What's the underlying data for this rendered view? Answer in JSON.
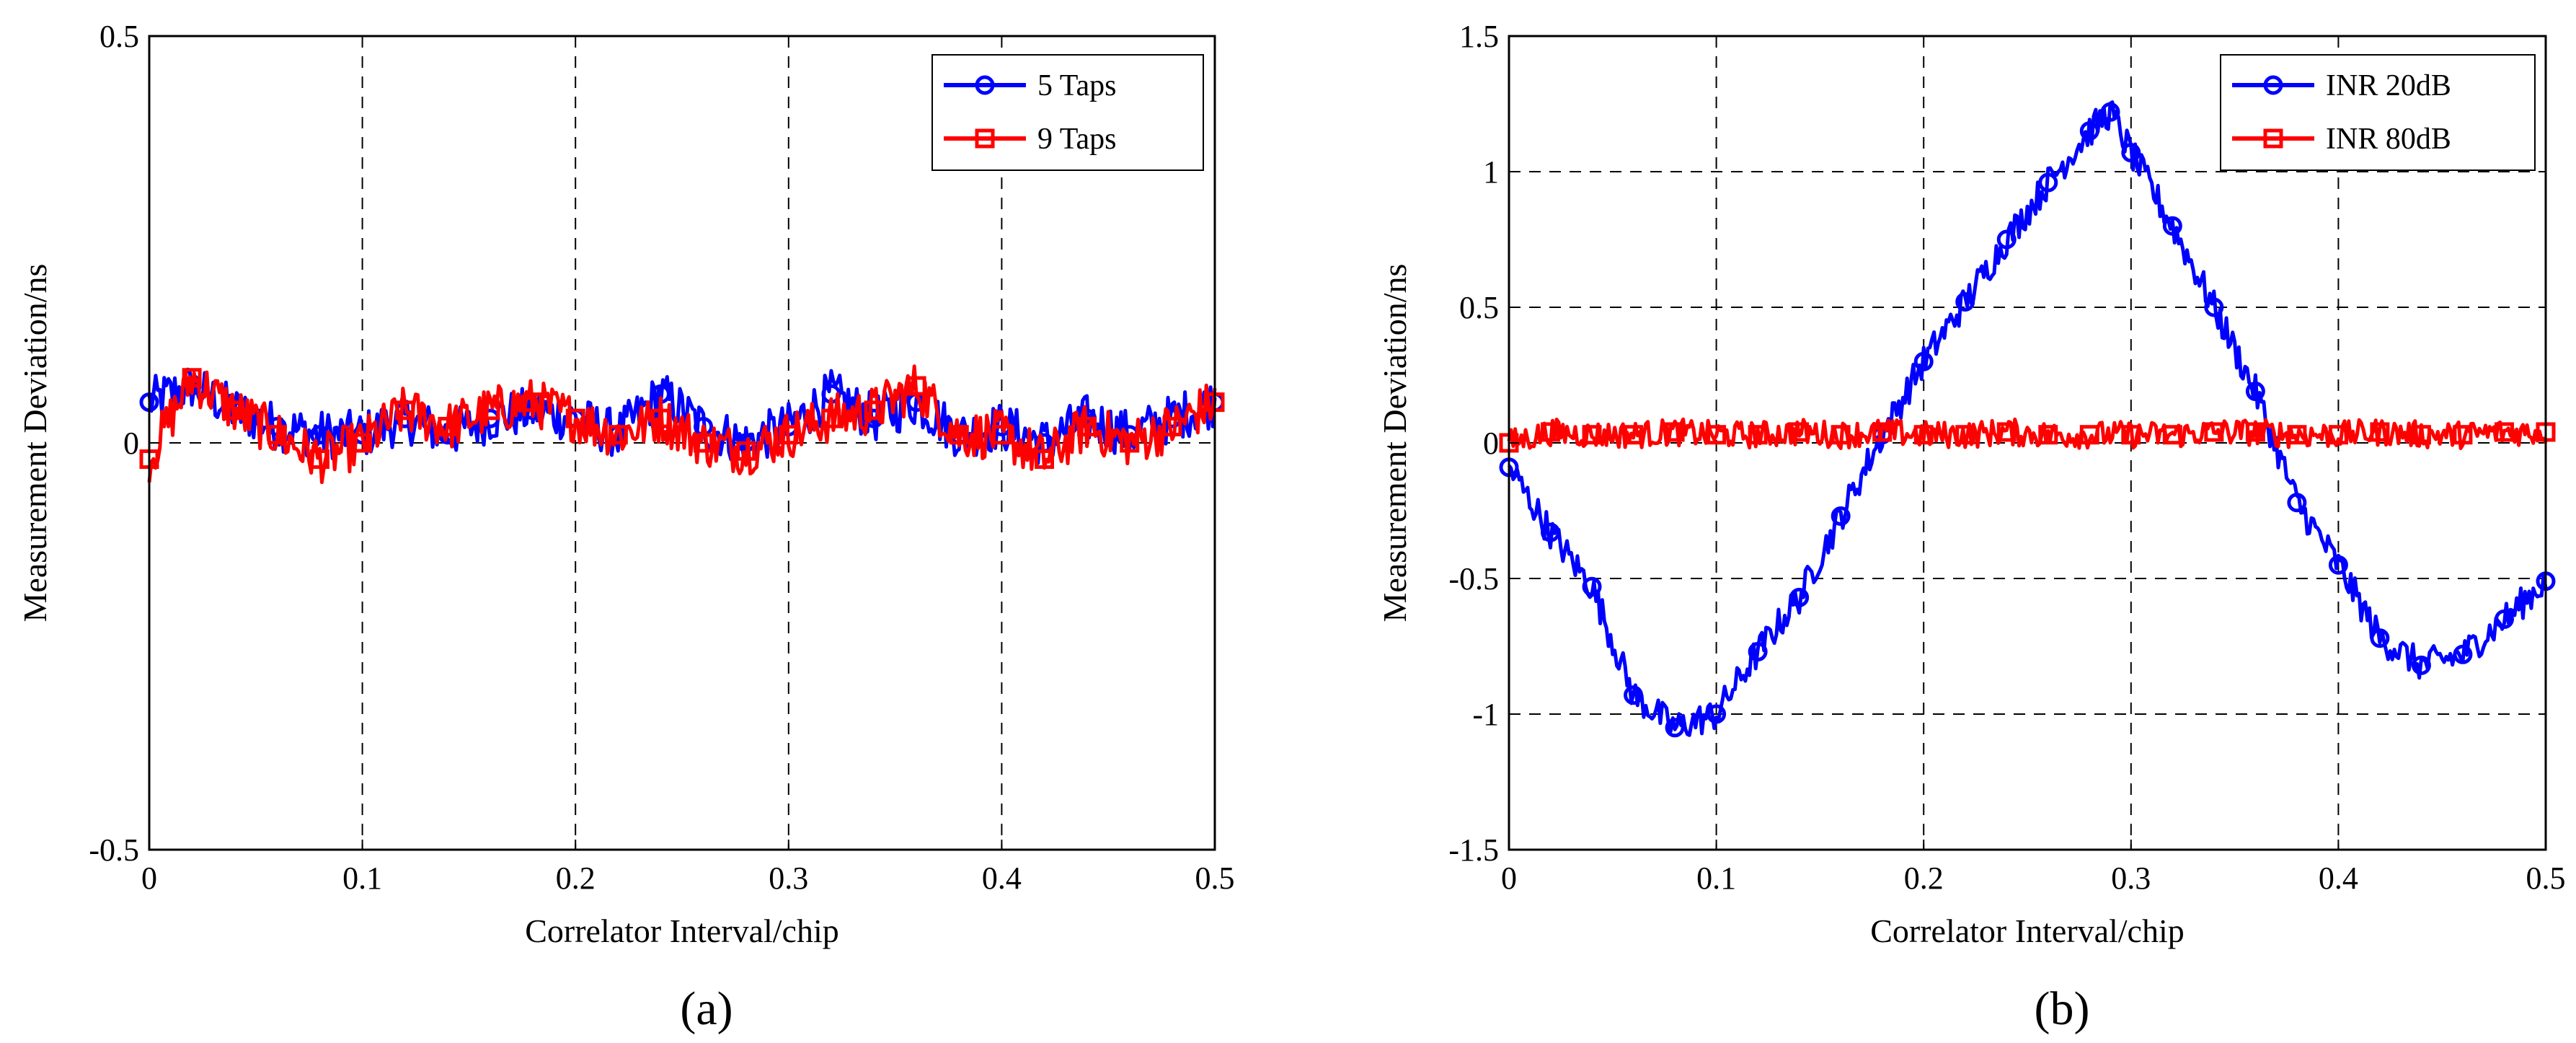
{
  "colors": {
    "blue": "#0000ff",
    "red": "#ff0000",
    "grid": "#000000",
    "background": "#ffffff"
  },
  "chart_data": [
    {
      "type": "line",
      "caption": "(a)",
      "xlabel": "Correlator Interval/chip",
      "ylabel": "Measurement Deviation/ns",
      "xlim": [
        0,
        0.5
      ],
      "ylim": [
        -0.5,
        0.5
      ],
      "xticks": [
        0,
        0.1,
        0.2,
        0.3,
        0.4,
        0.5
      ],
      "xtick_labels": [
        "0",
        "0.1",
        "0.2",
        "0.3",
        "0.4",
        "0.5"
      ],
      "yticks": [
        -0.5,
        0,
        0.5
      ],
      "ytick_labels": [
        "-0.5",
        "0",
        "0.5"
      ],
      "grid": "dashed",
      "legend_position": "top-right",
      "series": [
        {
          "name": "5 Taps",
          "color": "#0000ff",
          "marker": "circle",
          "noise": 0.03,
          "x": [
            0,
            0.02,
            0.04,
            0.06,
            0.08,
            0.1,
            0.12,
            0.14,
            0.16,
            0.18,
            0.2,
            0.22,
            0.24,
            0.26,
            0.28,
            0.3,
            0.32,
            0.34,
            0.36,
            0.38,
            0.4,
            0.42,
            0.44,
            0.46,
            0.48,
            0.5
          ],
          "y": [
            0.05,
            0.07,
            0.04,
            0.02,
            0.01,
            0.01,
            0.03,
            0.01,
            0.03,
            0.04,
            0.03,
            0.01,
            0.06,
            0.02,
            0.0,
            0.02,
            0.06,
            0.03,
            0.05,
            0.01,
            0.02,
            0.0,
            0.03,
            0.01,
            0.03,
            0.05
          ]
        },
        {
          "name": "9 Taps",
          "color": "#ff0000",
          "marker": "square",
          "noise": 0.03,
          "x": [
            0,
            0.02,
            0.04,
            0.06,
            0.08,
            0.1,
            0.12,
            0.14,
            0.16,
            0.18,
            0.2,
            0.22,
            0.24,
            0.26,
            0.28,
            0.3,
            0.32,
            0.34,
            0.36,
            0.38,
            0.4,
            0.42,
            0.44,
            0.46,
            0.48,
            0.5
          ],
          "y": [
            -0.02,
            0.08,
            0.04,
            0.01,
            -0.02,
            0.0,
            0.04,
            0.02,
            0.04,
            0.05,
            0.03,
            0.01,
            0.03,
            0.0,
            -0.01,
            0.01,
            0.03,
            0.04,
            0.07,
            0.01,
            0.01,
            -0.02,
            0.02,
            0.0,
            0.02,
            0.05
          ]
        }
      ]
    },
    {
      "type": "line",
      "caption": "(b)",
      "xlabel": "Correlator Interval/chip",
      "ylabel": "Measurement Deviation/ns",
      "xlim": [
        0,
        0.5
      ],
      "ylim": [
        -1.5,
        1.5
      ],
      "xticks": [
        0,
        0.1,
        0.2,
        0.3,
        0.4,
        0.5
      ],
      "xtick_labels": [
        "0",
        "0.1",
        "0.2",
        "0.3",
        "0.4",
        "0.5"
      ],
      "yticks": [
        -1.5,
        -1,
        -0.5,
        0,
        0.5,
        1,
        1.5
      ],
      "ytick_labels": [
        "-1.5",
        "-1",
        "-0.5",
        "0",
        "0.5",
        "1",
        "1.5"
      ],
      "grid": "dashed",
      "legend_position": "top-right",
      "series": [
        {
          "name": "INR 20dB",
          "color": "#0000ff",
          "marker": "circle",
          "noise": 0.06,
          "x": [
            0,
            0.02,
            0.04,
            0.06,
            0.08,
            0.1,
            0.12,
            0.14,
            0.16,
            0.18,
            0.2,
            0.22,
            0.24,
            0.26,
            0.28,
            0.29,
            0.3,
            0.32,
            0.34,
            0.36,
            0.38,
            0.4,
            0.42,
            0.44,
            0.46,
            0.48,
            0.5
          ],
          "y": [
            -0.09,
            -0.33,
            -0.53,
            -0.93,
            -1.05,
            -1.0,
            -0.77,
            -0.57,
            -0.27,
            0.03,
            0.3,
            0.52,
            0.75,
            0.96,
            1.15,
            1.22,
            1.07,
            0.8,
            0.5,
            0.19,
            -0.22,
            -0.45,
            -0.72,
            -0.82,
            -0.78,
            -0.65,
            -0.51
          ]
        },
        {
          "name": "INR 80dB",
          "color": "#ff0000",
          "marker": "square",
          "noise": 0.05,
          "x": [
            0,
            0.02,
            0.04,
            0.06,
            0.08,
            0.1,
            0.12,
            0.14,
            0.16,
            0.18,
            0.2,
            0.22,
            0.24,
            0.26,
            0.28,
            0.3,
            0.32,
            0.34,
            0.36,
            0.38,
            0.4,
            0.42,
            0.44,
            0.46,
            0.48,
            0.5
          ],
          "y": [
            0.0,
            0.04,
            0.03,
            0.03,
            0.04,
            0.03,
            0.03,
            0.04,
            0.03,
            0.04,
            0.03,
            0.03,
            0.04,
            0.03,
            0.03,
            0.03,
            0.03,
            0.04,
            0.04,
            0.03,
            0.03,
            0.04,
            0.03,
            0.03,
            0.04,
            0.04
          ]
        }
      ]
    }
  ]
}
